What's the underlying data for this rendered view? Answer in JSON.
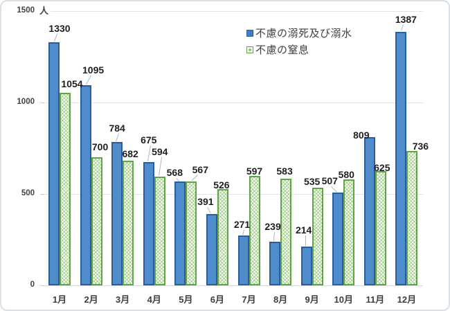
{
  "frame": {
    "background": "#ffffff",
    "border_color": "#dbe0e7"
  },
  "chart_data": {
    "type": "bar",
    "title": "",
    "unit_label": "人",
    "categories": [
      "1月",
      "2月",
      "3月",
      "4月",
      "5月",
      "6月",
      "7月",
      "8月",
      "9月",
      "10月",
      "11月",
      "12月"
    ],
    "series": [
      {
        "name": "不慮の溺死及び溺水",
        "fill": "#4E8CCB",
        "border": "#2B5D9C",
        "pattern": "solid",
        "values": [
          1330,
          1095,
          784,
          675,
          568,
          391,
          271,
          239,
          214,
          507,
          809,
          1387
        ]
      },
      {
        "name": "不慮の窒息",
        "fill": "#EAF4E3",
        "border": "#5FA546",
        "pattern": "crosshatch",
        "values": [
          1054,
          700,
          682,
          594,
          567,
          526,
          597,
          583,
          535,
          580,
          625,
          736
        ]
      }
    ],
    "y_ticks": [
      0,
      500,
      1000,
      1500
    ],
    "ylim": [
      0,
      1500
    ],
    "grid": true,
    "legend_position": "top-right",
    "label_layout": [
      {
        "dx": [
          8,
          11,
          0,
          0,
          -8,
          -9,
          -2,
          -3,
          -4,
          -12,
          -12,
          7
        ],
        "top": [
          32,
          92,
          176,
          193,
          240,
          282,
          315,
          318,
          323,
          252,
          186,
          19
        ],
        "leader": [
          1,
          1,
          1,
          1,
          1,
          1,
          1,
          1,
          1,
          1,
          0,
          1
        ]
      },
      {
        "dx": [
          10,
          5,
          3,
          0,
          13,
          -2,
          0,
          -2,
          -8,
          -4,
          2,
          12
        ],
        "top": [
          112,
          203,
          213,
          210,
          236,
          258,
          238,
          238,
          253,
          243,
          233,
          202
        ],
        "leader": [
          0,
          0,
          0,
          1,
          1,
          0,
          0,
          0,
          0,
          0,
          0,
          0
        ]
      }
    ]
  }
}
